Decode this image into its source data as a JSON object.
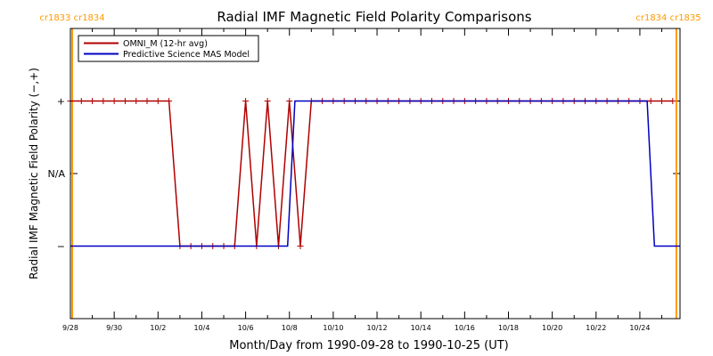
{
  "chart_data": {
    "type": "line",
    "title": "Radial IMF Magnetic Field Polarity Comparisons",
    "xlabel": "Month/Day from 1990-09-28 to 1990-10-25 (UT)",
    "ylabel": "Radial IMF Magnetic Field Polarity (−,+)",
    "x_ticks": [
      "9/28",
      "9/30",
      "10/2",
      "10/4",
      "10/6",
      "10/8",
      "10/10",
      "10/12",
      "10/14",
      "10/16",
      "10/18",
      "10/20",
      "10/22",
      "10/24"
    ],
    "x_tick_dates": [
      "1990-09-28",
      "1990-09-30",
      "1990-10-02",
      "1990-10-04",
      "1990-10-06",
      "1990-10-08",
      "1990-10-10",
      "1990-10-12",
      "1990-10-14",
      "1990-10-16",
      "1990-10-18",
      "1990-10-20",
      "1990-10-22",
      "1990-10-24"
    ],
    "y_ticks": [
      {
        "label": "+",
        "value": 1
      },
      {
        "label": "N/A",
        "value": 0
      },
      {
        "label": "−",
        "value": -1
      }
    ],
    "xlim": [
      "1990-09-28T00:00",
      "1990-10-25T20:00"
    ],
    "ylim": [
      -2,
      2
    ],
    "legend_position": "top-left",
    "series": [
      {
        "name": "OMNI_M (12-hr avg)",
        "color": "#b00000",
        "marker": "plus",
        "points": [
          [
            "1990-09-28T00:00",
            1
          ],
          [
            "1990-09-28T12:00",
            1
          ],
          [
            "1990-09-29T00:00",
            1
          ],
          [
            "1990-09-29T12:00",
            1
          ],
          [
            "1990-09-30T00:00",
            1
          ],
          [
            "1990-09-30T12:00",
            1
          ],
          [
            "1990-10-01T00:00",
            1
          ],
          [
            "1990-10-01T12:00",
            1
          ],
          [
            "1990-10-02T00:00",
            1
          ],
          [
            "1990-10-02T12:00",
            1
          ],
          [
            "1990-10-03T00:00",
            -1
          ],
          [
            "1990-10-03T12:00",
            -1
          ],
          [
            "1990-10-04T00:00",
            -1
          ],
          [
            "1990-10-04T12:00",
            -1
          ],
          [
            "1990-10-05T00:00",
            -1
          ],
          [
            "1990-10-05T12:00",
            -1
          ],
          [
            "1990-10-06T00:00",
            1
          ],
          [
            "1990-10-06T12:00",
            -1
          ],
          [
            "1990-10-07T00:00",
            1
          ],
          [
            "1990-10-07T12:00",
            -1
          ],
          [
            "1990-10-08T00:00",
            1
          ],
          [
            "1990-10-08T12:00",
            -1
          ],
          [
            "1990-10-09T00:00",
            1
          ],
          [
            "1990-10-09T12:00",
            1
          ],
          [
            "1990-10-10T00:00",
            1
          ],
          [
            "1990-10-10T12:00",
            1
          ],
          [
            "1990-10-11T00:00",
            1
          ],
          [
            "1990-10-11T12:00",
            1
          ],
          [
            "1990-10-12T00:00",
            1
          ],
          [
            "1990-10-12T12:00",
            1
          ],
          [
            "1990-10-13T00:00",
            1
          ],
          [
            "1990-10-13T12:00",
            1
          ],
          [
            "1990-10-14T00:00",
            1
          ],
          [
            "1990-10-14T12:00",
            1
          ],
          [
            "1990-10-15T00:00",
            1
          ],
          [
            "1990-10-15T12:00",
            1
          ],
          [
            "1990-10-16T00:00",
            1
          ],
          [
            "1990-10-16T12:00",
            1
          ],
          [
            "1990-10-17T00:00",
            1
          ],
          [
            "1990-10-17T12:00",
            1
          ],
          [
            "1990-10-18T00:00",
            1
          ],
          [
            "1990-10-18T12:00",
            1
          ],
          [
            "1990-10-19T00:00",
            1
          ],
          [
            "1990-10-19T12:00",
            1
          ],
          [
            "1990-10-20T00:00",
            1
          ],
          [
            "1990-10-20T12:00",
            1
          ],
          [
            "1990-10-21T00:00",
            1
          ],
          [
            "1990-10-21T12:00",
            1
          ],
          [
            "1990-10-22T00:00",
            1
          ],
          [
            "1990-10-22T12:00",
            1
          ],
          [
            "1990-10-23T00:00",
            1
          ],
          [
            "1990-10-23T12:00",
            1
          ],
          [
            "1990-10-24T00:00",
            1
          ],
          [
            "1990-10-24T12:00",
            1
          ],
          [
            "1990-10-25T00:00",
            1
          ],
          [
            "1990-10-25T12:00",
            1
          ]
        ]
      },
      {
        "name": "Predictive Science MAS Model",
        "color": "#0000c0",
        "marker": "none",
        "points": [
          [
            "1990-09-28T00:00",
            -1
          ],
          [
            "1990-10-07T22:00",
            -1
          ],
          [
            "1990-10-08T02:00",
            0
          ],
          [
            "1990-10-08T06:00",
            1
          ],
          [
            "1990-10-24T08:00",
            1
          ],
          [
            "1990-10-24T12:00",
            0
          ],
          [
            "1990-10-24T16:00",
            -1
          ],
          [
            "1990-10-25T20:00",
            -1
          ]
        ]
      }
    ],
    "carrington_markers": [
      {
        "date": "1990-09-28T02:00",
        "label": "cr1833 cr1834",
        "color": "#ff9900"
      },
      {
        "date": "1990-10-25T16:00",
        "label": "cr1834 cr1835",
        "color": "#ff9900"
      }
    ]
  }
}
